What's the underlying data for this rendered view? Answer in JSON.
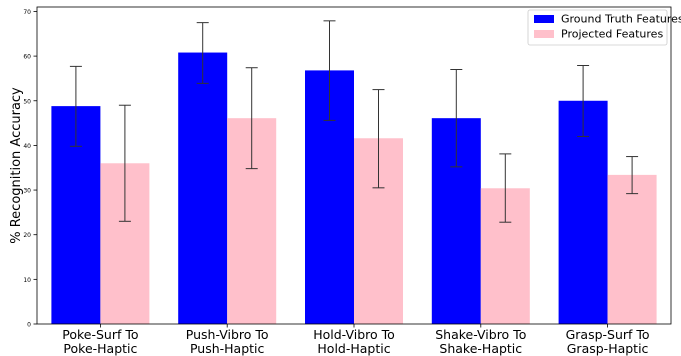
{
  "chart_data": {
    "type": "bar",
    "title": "",
    "xlabel": "",
    "ylabel": "% Recognition Accuracy",
    "ylim": [
      0,
      71
    ],
    "yticks": [
      0,
      10,
      20,
      30,
      40,
      50,
      60,
      70
    ],
    "grid": false,
    "legend_position": "top-right",
    "categories": [
      [
        "Poke-Surf To",
        "Poke-Haptic"
      ],
      [
        "Push-Vibro To",
        "Push-Haptic"
      ],
      [
        "Hold-Vibro To",
        "Hold-Haptic"
      ],
      [
        "Shake-Vibro To",
        "Shake-Haptic"
      ],
      [
        "Grasp-Surf To",
        "Grasp-Haptic"
      ]
    ],
    "series": [
      {
        "name": "Ground Truth Features",
        "color": "#0000ff",
        "values": [
          48.8,
          60.8,
          56.8,
          46.1,
          50.0
        ],
        "err_low": [
          39.8,
          53.9,
          45.6,
          35.2,
          42.0
        ],
        "err_high": [
          57.7,
          67.5,
          67.9,
          57.0,
          57.9
        ]
      },
      {
        "name": "Projected Features",
        "color": "#ffc0cb",
        "values": [
          36.0,
          46.1,
          41.6,
          30.4,
          33.4
        ],
        "err_low": [
          23.0,
          34.8,
          30.5,
          22.8,
          29.2
        ],
        "err_high": [
          49.0,
          57.4,
          52.5,
          38.1,
          37.5
        ]
      }
    ]
  }
}
